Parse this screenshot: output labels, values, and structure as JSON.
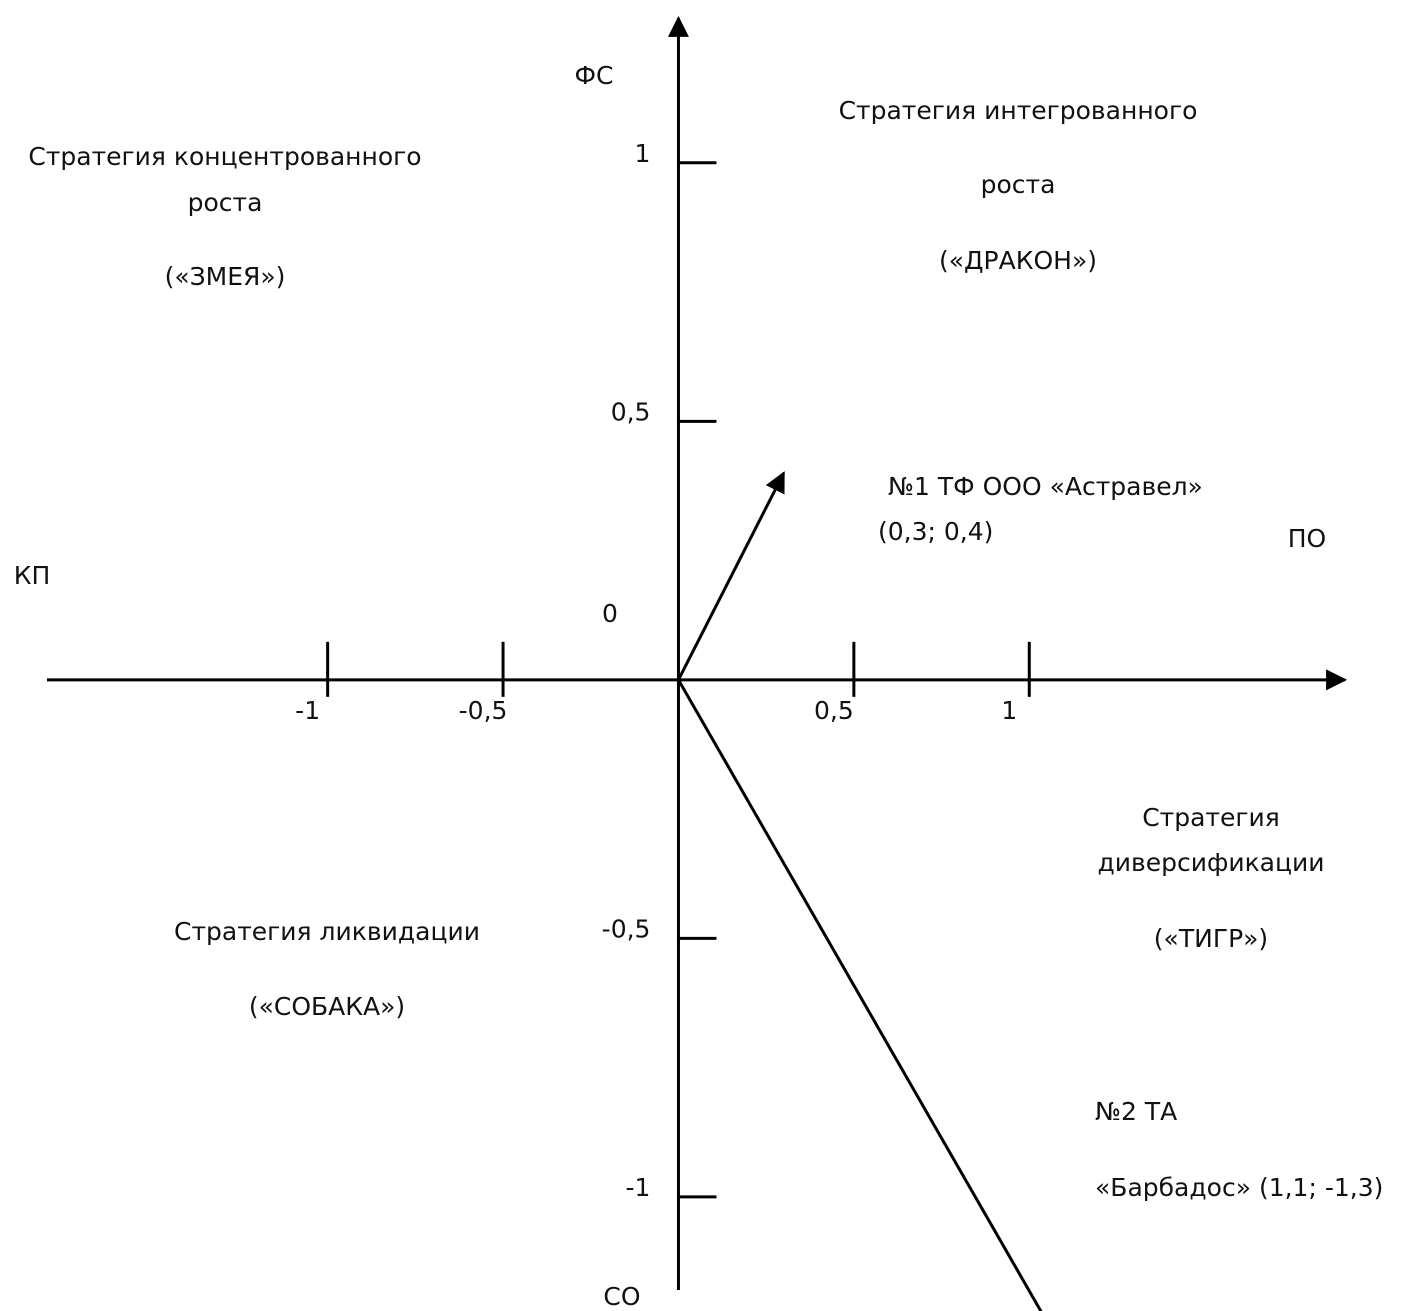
{
  "chart_data": {
    "type": "vector",
    "y_label_top": "ФС",
    "y_label_bottom": "СО",
    "x_label_left": "КП",
    "x_label_right": "ПО",
    "xlim": [
      -1.8,
      1.9
    ],
    "ylim": [
      -1.18,
      1.28
    ],
    "xticks": [
      -1,
      {
        "value": -0.5,
        "label": "-0,5"
      },
      {
        "value": 0.5,
        "label": "0,5"
      },
      1
    ],
    "yticks": [
      1,
      {
        "value": 0.5,
        "label": "0,5"
      },
      {
        "value": -0.5,
        "label": "-0,5"
      },
      -1
    ],
    "origin_label": "0",
    "quadrants": [
      {
        "lines": [
          "Стратегия концентрованного",
          "роста",
          "(«ЗМЕЯ»)"
        ]
      },
      {
        "lines": [
          "Стратегия интегрованного",
          "роста",
          "(«ДРАКОН»)"
        ]
      },
      {
        "lines": [
          "Стратегия",
          "диверсификации",
          "(«ТИГР»)"
        ]
      },
      {
        "lines": [
          "Стратегия ликвидации",
          "(«СОБАКА»)"
        ]
      }
    ],
    "series": [
      {
        "name": "№1 ТФ ООО «Астравел»",
        "label": "(0,3; 0,4)",
        "x": 0.3,
        "y": 0.4,
        "color": "#000000"
      },
      {
        "name": "№2 ТА",
        "label": "«Барбадос» (1,1; -1,3)",
        "x": 1.1,
        "y": -1.3,
        "color": "#000000"
      }
    ]
  }
}
